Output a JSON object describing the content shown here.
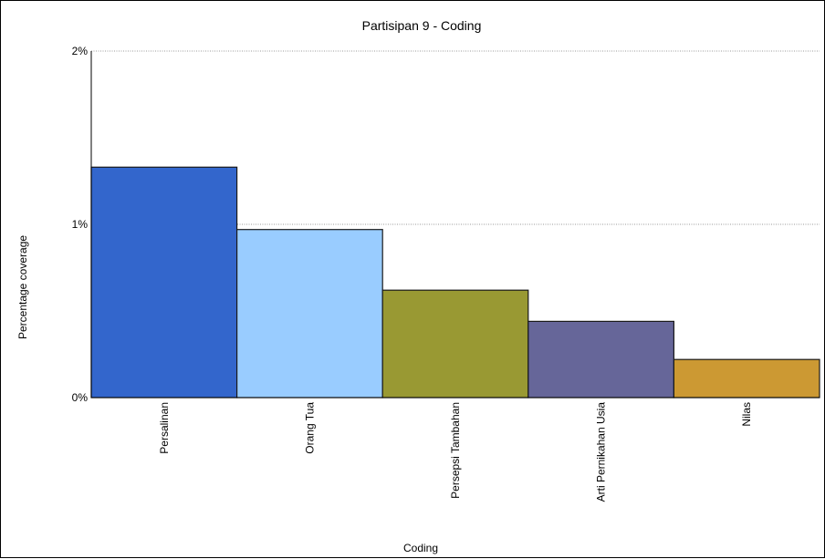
{
  "chart_data": {
    "type": "bar",
    "title": "Partisipan 9 - Coding",
    "xlabel": "Coding",
    "ylabel": "Percentage coverage",
    "categories": [
      "Persalinan",
      "Orang Tua",
      "Persepsi Tambahan",
      "Arti Pernikahan Usia",
      "Nilas"
    ],
    "values": [
      1.33,
      0.97,
      0.62,
      0.44,
      0.22
    ],
    "colors": [
      "#3366cc",
      "#99ccff",
      "#999933",
      "#666699",
      "#cc9933"
    ],
    "ylim": [
      0,
      2
    ],
    "yticks": [
      0,
      1,
      2
    ],
    "ytick_labels": [
      "0%",
      "1%",
      "2%"
    ],
    "grid": true
  }
}
